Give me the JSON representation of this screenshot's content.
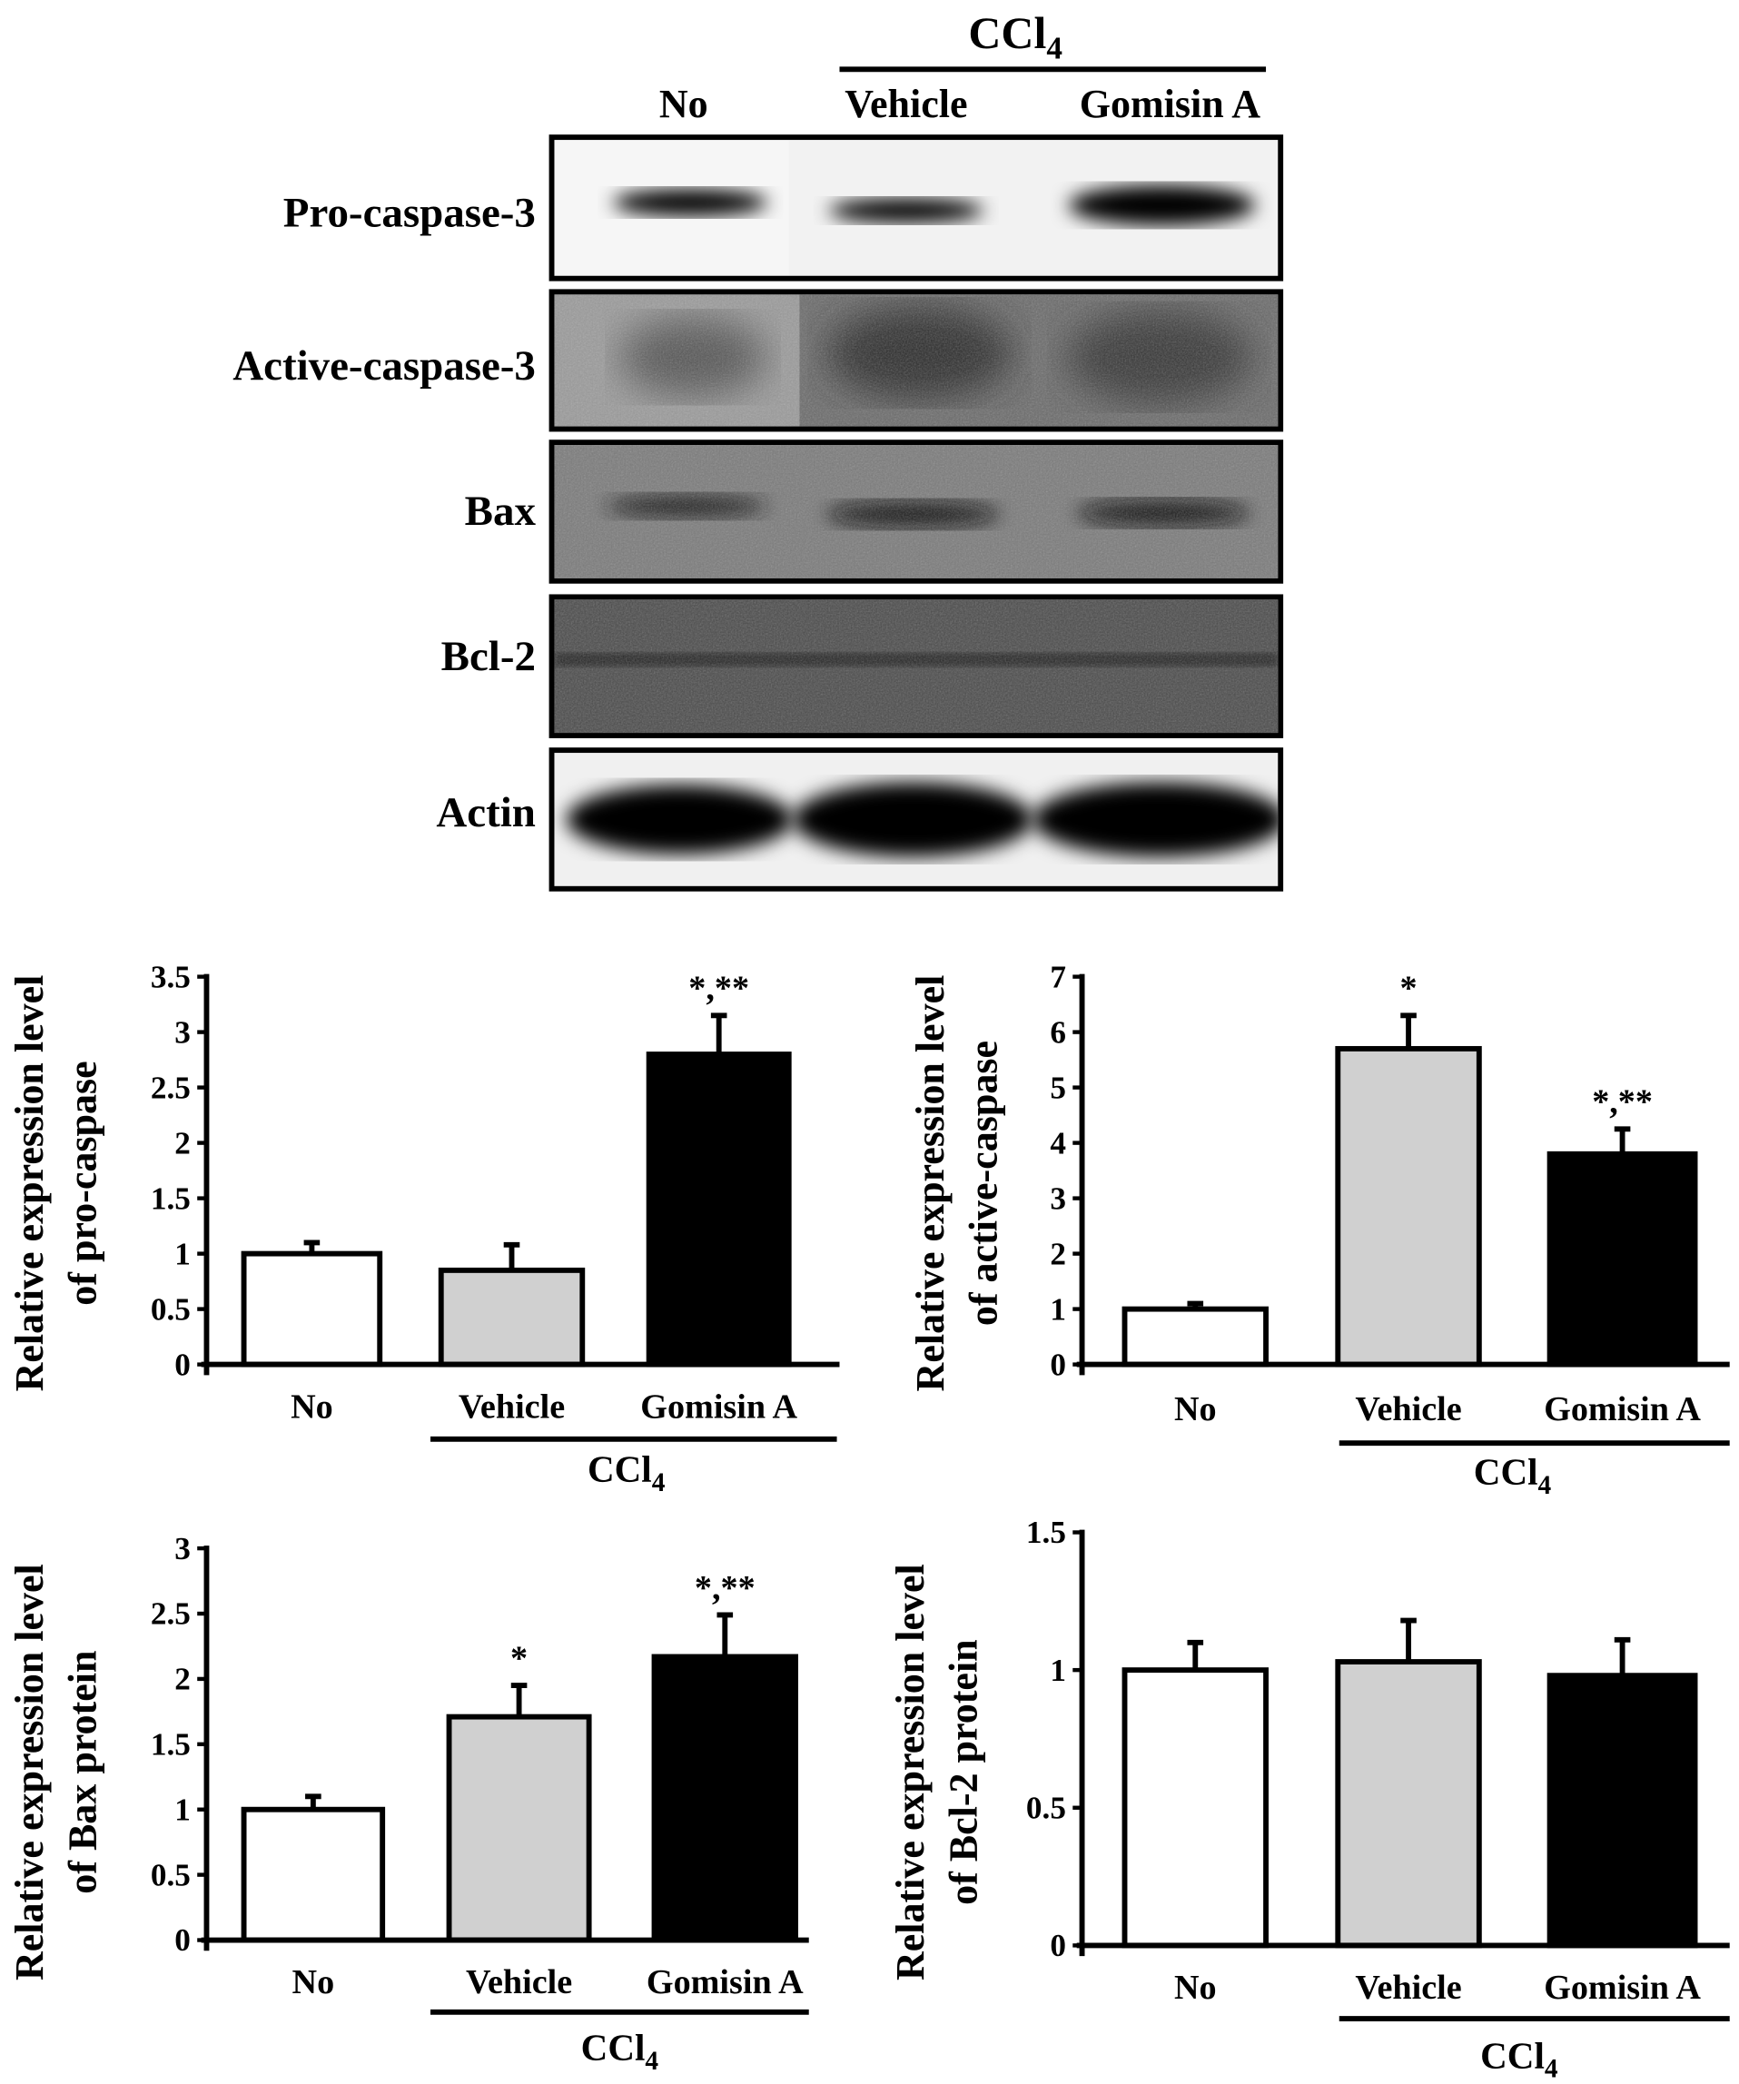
{
  "blot": {
    "group_label": "CCl",
    "group_sub": "4",
    "lanes": [
      "No",
      "Vehicle",
      "Gomisin A"
    ],
    "rows": [
      "Pro-caspase-3",
      "Active-caspase-3",
      "Bax",
      "Bcl-2",
      "Actin"
    ]
  },
  "chart_data": [
    {
      "type": "bar",
      "categories": [
        "No",
        "Vehicle",
        "Gomisin A"
      ],
      "values": [
        1.0,
        0.85,
        2.8
      ],
      "errors": [
        0.1,
        0.23,
        0.35
      ],
      "annotations": [
        "",
        "",
        "*,**"
      ],
      "ylabel": [
        "Relative expression level",
        "of pro-caspase"
      ],
      "ylim": [
        0,
        3.5
      ],
      "yticks": [
        "0",
        "0.5",
        "1",
        "1.5",
        "2",
        "2.5",
        "3",
        "3.5"
      ],
      "group_label": "CCl",
      "group_sub": "4",
      "colors": [
        "#ffffff",
        "#d0d0d0",
        "#000000"
      ]
    },
    {
      "type": "bar",
      "categories": [
        "No",
        "Vehicle",
        "Gomisin A"
      ],
      "values": [
        1.0,
        5.7,
        3.8
      ],
      "errors": [
        0.1,
        0.6,
        0.45
      ],
      "annotations": [
        "",
        "*",
        "*,**"
      ],
      "ylabel": [
        "Relative expression level",
        "of active-caspase"
      ],
      "ylim": [
        0,
        7
      ],
      "yticks": [
        "0",
        "1",
        "2",
        "3",
        "4",
        "5",
        "6",
        "7"
      ],
      "group_label": "CCl",
      "group_sub": "4",
      "colors": [
        "#ffffff",
        "#d0d0d0",
        "#000000"
      ]
    },
    {
      "type": "bar",
      "categories": [
        "No",
        "Vehicle",
        "Gomisin A"
      ],
      "values": [
        1.0,
        1.71,
        2.17
      ],
      "errors": [
        0.1,
        0.24,
        0.32
      ],
      "annotations": [
        "",
        "*",
        "*,**"
      ],
      "ylabel": [
        "Relative expression level",
        "of Bax protein"
      ],
      "ylim": [
        0,
        3
      ],
      "yticks": [
        "0",
        "0.5",
        "1",
        "1.5",
        "2",
        "2.5",
        "3"
      ],
      "group_label": "CCl",
      "group_sub": "4",
      "colors": [
        "#ffffff",
        "#d0d0d0",
        "#000000"
      ]
    },
    {
      "type": "bar",
      "categories": [
        "No",
        "Vehicle",
        "Gomisin A"
      ],
      "values": [
        1.0,
        1.03,
        0.98
      ],
      "errors": [
        0.1,
        0.15,
        0.13
      ],
      "annotations": [
        "",
        "",
        ""
      ],
      "ylabel": [
        "Relative expression level",
        "of Bcl-2 protein"
      ],
      "ylim": [
        0,
        1.5
      ],
      "yticks": [
        "0",
        "0.5",
        "1",
        "1.5"
      ],
      "group_label": "CCl",
      "group_sub": "4",
      "colors": [
        "#ffffff",
        "#d0d0d0",
        "#000000"
      ]
    }
  ]
}
